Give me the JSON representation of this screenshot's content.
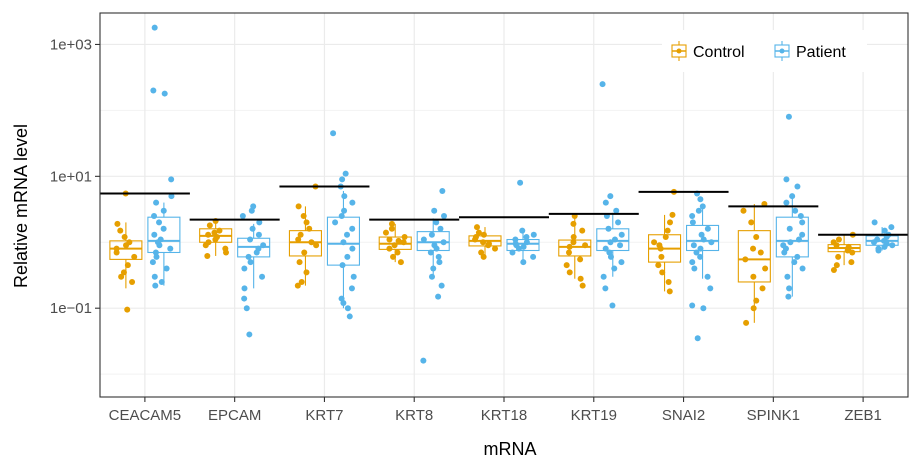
{
  "chart_data": {
    "type": "box",
    "xlabel": "mRNA",
    "ylabel": "Relative mRNA level",
    "y_scale": "log10",
    "ylim": [
      0.0045,
      3000
    ],
    "y_ticks": [
      {
        "value": 1000,
        "label": "1e+03"
      },
      {
        "value": 10,
        "label": "1e+01"
      },
      {
        "value": 0.1,
        "label": "1e−01"
      }
    ],
    "grid": true,
    "legend": {
      "position": "top-right",
      "entries": [
        "Control",
        "Patient"
      ]
    },
    "categories": [
      "CEACAM5",
      "EPCAM",
      "KRT7",
      "KRT8",
      "KRT18",
      "KRT19",
      "SNAI2",
      "SPINK1",
      "ZEB1"
    ],
    "series": [
      {
        "name": "Control",
        "color": "#E69F00",
        "boxes": [
          {
            "q1": 0.55,
            "median": 0.8,
            "q3": 1.05,
            "whisker_low": 0.2,
            "whisker_high": 2.0
          },
          {
            "q1": 1.0,
            "median": 1.25,
            "q3": 1.6,
            "whisker_low": 0.62,
            "whisker_high": 2.1
          },
          {
            "q1": 0.62,
            "median": 1.0,
            "q3": 1.5,
            "whisker_low": 0.22,
            "whisker_high": 3.5
          },
          {
            "q1": 0.78,
            "median": 0.95,
            "q3": 1.2,
            "whisker_low": 0.5,
            "whisker_high": 1.9
          },
          {
            "q1": 0.88,
            "median": 1.05,
            "q3": 1.25,
            "whisker_low": 0.6,
            "whisker_high": 1.7
          },
          {
            "q1": 0.62,
            "median": 0.85,
            "q3": 1.08,
            "whisker_low": 0.28,
            "whisker_high": 2.5
          },
          {
            "q1": 0.5,
            "median": 0.8,
            "q3": 1.3,
            "whisker_low": 0.18,
            "whisker_high": 2.6
          },
          {
            "q1": 0.25,
            "median": 0.55,
            "q3": 1.5,
            "whisker_low": 0.06,
            "whisker_high": 3.8
          },
          {
            "q1": 0.72,
            "median": 0.82,
            "q3": 0.92,
            "whisker_low": 0.45,
            "whisker_high": 1.3
          }
        ],
        "points": [
          [
            5.5,
            0.095,
            1.9,
            1.5,
            1.2,
            0.9,
            0.7,
            0.6,
            0.45,
            0.35,
            0.3,
            0.25,
            1.0,
            0.8
          ],
          [
            2.1,
            1.8,
            1.5,
            1.3,
            1.2,
            1.1,
            1.0,
            0.9,
            0.8,
            0.7,
            0.62,
            1.4
          ],
          [
            7.0,
            3.5,
            2.5,
            2.0,
            1.6,
            1.3,
            1.1,
            0.9,
            0.7,
            0.5,
            0.35,
            0.25,
            0.22,
            1.0
          ],
          [
            1.9,
            1.6,
            1.4,
            1.2,
            1.1,
            1.0,
            0.9,
            0.8,
            0.7,
            0.6,
            0.5,
            1.05
          ],
          [
            1.7,
            1.4,
            1.3,
            1.2,
            1.1,
            1.0,
            0.95,
            0.9,
            0.8,
            0.7,
            0.6
          ],
          [
            2.5,
            1.9,
            1.5,
            1.2,
            1.0,
            0.85,
            0.7,
            0.55,
            0.45,
            0.35,
            0.28,
            0.22,
            0.9
          ],
          [
            5.8,
            2.6,
            2.0,
            1.5,
            1.2,
            1.0,
            0.8,
            0.6,
            0.45,
            0.35,
            0.25,
            0.18,
            0.9
          ],
          [
            3.8,
            3.0,
            2.0,
            1.2,
            0.8,
            0.55,
            0.4,
            0.3,
            0.2,
            0.13,
            0.1,
            0.06,
            0.7
          ],
          [
            1.3,
            1.1,
            1.0,
            0.9,
            0.85,
            0.8,
            0.75,
            0.7,
            0.6,
            0.5,
            0.45,
            0.38
          ]
        ]
      },
      {
        "name": "Patient",
        "color": "#56B4E9",
        "boxes": [
          {
            "q1": 0.7,
            "median": 1.05,
            "q3": 2.4,
            "whisker_low": 0.22,
            "whisker_high": 4.0
          },
          {
            "q1": 0.6,
            "median": 0.85,
            "q3": 1.15,
            "whisker_low": 0.2,
            "whisker_high": 1.9
          },
          {
            "q1": 0.45,
            "median": 0.95,
            "q3": 2.4,
            "whisker_low": 0.1,
            "whisker_high": 6.0
          },
          {
            "q1": 0.75,
            "median": 1.0,
            "q3": 1.45,
            "whisker_low": 0.3,
            "whisker_high": 2.3
          },
          {
            "q1": 0.75,
            "median": 0.95,
            "q3": 1.1,
            "whisker_low": 0.5,
            "whisker_high": 1.5
          },
          {
            "q1": 0.75,
            "median": 1.05,
            "q3": 1.6,
            "whisker_low": 0.3,
            "whisker_high": 2.8
          },
          {
            "q1": 0.75,
            "median": 1.05,
            "q3": 1.8,
            "whisker_low": 0.28,
            "whisker_high": 3.3
          },
          {
            "q1": 0.6,
            "median": 1.05,
            "q3": 2.4,
            "whisker_low": 0.15,
            "whisker_high": 5.0
          },
          {
            "q1": 0.9,
            "median": 1.05,
            "q3": 1.25,
            "whisker_low": 0.75,
            "whisker_high": 1.7
          }
        ],
        "points": [
          [
            1800,
            200,
            180,
            9,
            5,
            4,
            3,
            2.5,
            2,
            1.6,
            1.3,
            1.1,
            1.0,
            0.9,
            0.8,
            0.7,
            0.6,
            0.5,
            0.4,
            0.3,
            0.25,
            0.22
          ],
          [
            3.5,
            3.0,
            2.5,
            2.0,
            1.6,
            1.3,
            1.1,
            0.9,
            0.8,
            0.7,
            0.6,
            0.5,
            0.4,
            0.3,
            0.2,
            0.14,
            0.1,
            0.04
          ],
          [
            45,
            11,
            9,
            7,
            5,
            4,
            3,
            2.5,
            2,
            1.6,
            1.3,
            1.0,
            0.8,
            0.6,
            0.45,
            0.3,
            0.2,
            0.14,
            0.12,
            0.1,
            0.075
          ],
          [
            6,
            3.0,
            2.5,
            2.0,
            1.6,
            1.3,
            1.1,
            1.0,
            0.9,
            0.8,
            0.7,
            0.6,
            0.5,
            0.4,
            0.3,
            0.22,
            0.15,
            0.016
          ],
          [
            8,
            1.5,
            1.3,
            1.2,
            1.1,
            1.0,
            0.95,
            0.9,
            0.85,
            0.8,
            0.7,
            0.6,
            0.5
          ],
          [
            250,
            5,
            4,
            3,
            2.5,
            2.0,
            1.6,
            1.3,
            1.1,
            1.0,
            0.9,
            0.8,
            0.7,
            0.6,
            0.5,
            0.4,
            0.3,
            0.2,
            0.11
          ],
          [
            5.5,
            4.5,
            3.5,
            3.0,
            2.5,
            2.0,
            1.6,
            1.3,
            1.1,
            1.0,
            0.9,
            0.8,
            0.7,
            0.6,
            0.5,
            0.4,
            0.3,
            0.2,
            0.11,
            0.1,
            0.035
          ],
          [
            80,
            9,
            7,
            5,
            4,
            3,
            2.5,
            2.0,
            1.6,
            1.3,
            1.1,
            1.0,
            0.9,
            0.8,
            0.7,
            0.6,
            0.5,
            0.4,
            0.3,
            0.2,
            0.15
          ],
          [
            2.0,
            1.7,
            1.5,
            1.3,
            1.2,
            1.1,
            1.05,
            1.0,
            0.95,
            0.9,
            0.85,
            0.8,
            0.75
          ]
        ]
      }
    ],
    "reference_lines": [
      5.5,
      2.2,
      7.0,
      2.2,
      2.4,
      2.7,
      5.8,
      3.5,
      1.3
    ]
  }
}
